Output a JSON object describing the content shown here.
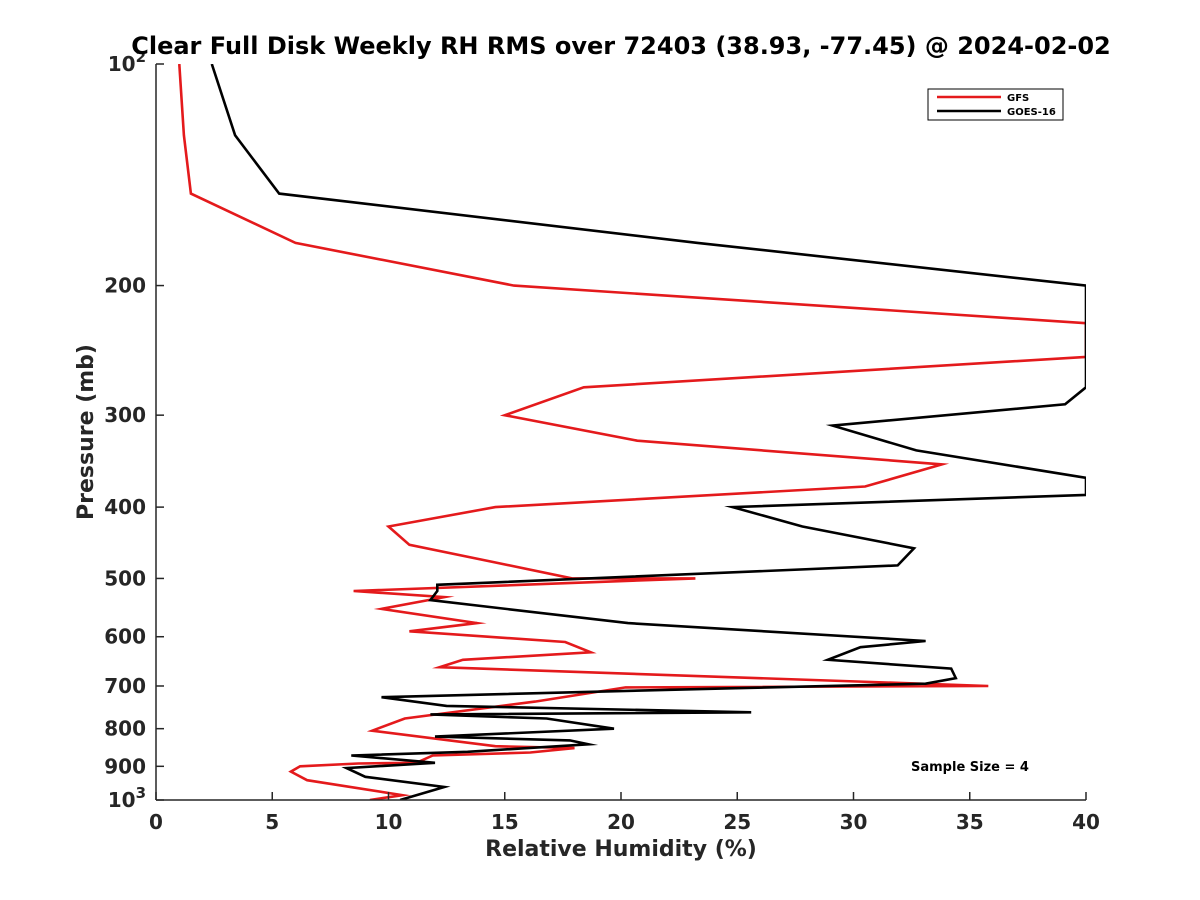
{
  "chart_data": {
    "type": "line",
    "title": "Clear Full Disk Weekly RH RMS over 72403 (38.93, -77.45) @ 2024-02-02",
    "xlabel": "Relative Humidity (%)",
    "ylabel": "Pressure (mb)",
    "xlim": [
      0,
      40
    ],
    "ylim": [
      100,
      1000
    ],
    "y_scale": "log",
    "y_reversed": true,
    "x_ticks": [
      "0",
      "5",
      "10",
      "15",
      "20",
      "25",
      "30",
      "35",
      "40"
    ],
    "y_ticks": [
      {
        "value": 100,
        "base": "10",
        "exp": "2"
      },
      {
        "value": 200,
        "label": "200"
      },
      {
        "value": 300,
        "label": "300"
      },
      {
        "value": 400,
        "label": "400"
      },
      {
        "value": 500,
        "label": "500"
      },
      {
        "value": 600,
        "label": "600"
      },
      {
        "value": 700,
        "label": "700"
      },
      {
        "value": 800,
        "label": "800"
      },
      {
        "value": 900,
        "label": "900"
      },
      {
        "value": 1000,
        "base": "10",
        "exp": "3"
      }
    ],
    "legend_position": "top-right",
    "annotation": "Sample Size = 4",
    "series": [
      {
        "name": "GFS",
        "color": "#e41a1c",
        "points": [
          [
            1.0,
            100
          ],
          [
            1.2,
            125
          ],
          [
            1.5,
            150
          ],
          [
            6.0,
            175
          ],
          [
            15.4,
            200
          ],
          [
            40.0,
            225
          ],
          [
            40.0,
            250
          ],
          [
            18.4,
            275
          ],
          [
            15.0,
            300
          ],
          [
            20.7,
            325
          ],
          [
            33.8,
            350
          ],
          [
            30.5,
            375
          ],
          [
            14.6,
            400
          ],
          [
            10.0,
            425
          ],
          [
            10.9,
            450
          ],
          [
            14.5,
            475
          ],
          [
            17.9,
            500
          ],
          [
            23.2,
            500
          ],
          [
            8.5,
            520
          ],
          [
            12.4,
            530
          ],
          [
            9.7,
            550
          ],
          [
            13.8,
            575
          ],
          [
            10.9,
            590
          ],
          [
            17.6,
            610
          ],
          [
            18.7,
            630
          ],
          [
            13.2,
            645
          ],
          [
            12.2,
            660
          ],
          [
            35.8,
            700
          ],
          [
            20.2,
            703
          ],
          [
            16.3,
            735
          ],
          [
            10.7,
            775
          ],
          [
            9.3,
            805
          ],
          [
            14.6,
            845
          ],
          [
            18.0,
            850
          ],
          [
            16.1,
            862
          ],
          [
            11.9,
            870
          ],
          [
            11.2,
            890
          ],
          [
            8.7,
            892
          ],
          [
            6.2,
            900
          ],
          [
            5.8,
            915
          ],
          [
            6.5,
            940
          ],
          [
            10.6,
            985
          ],
          [
            9.2,
            1000
          ]
        ]
      },
      {
        "name": "GOES-16",
        "color": "#000000",
        "points": [
          [
            2.4,
            100
          ],
          [
            3.4,
            125
          ],
          [
            5.3,
            150
          ],
          [
            23.3,
            175
          ],
          [
            40.0,
            200
          ],
          [
            40.0,
            275
          ],
          [
            39.1,
            290
          ],
          [
            29.1,
            310
          ],
          [
            32.7,
            335
          ],
          [
            40.0,
            365
          ],
          [
            40.0,
            385
          ],
          [
            24.8,
            400
          ],
          [
            27.8,
            425
          ],
          [
            32.6,
            455
          ],
          [
            31.9,
            480
          ],
          [
            12.1,
            510
          ],
          [
            12.1,
            520
          ],
          [
            11.8,
            535
          ],
          [
            20.3,
            575
          ],
          [
            33.1,
            608
          ],
          [
            30.3,
            620
          ],
          [
            28.9,
            645
          ],
          [
            34.2,
            663
          ],
          [
            34.4,
            683
          ],
          [
            33.1,
            695
          ],
          [
            24.7,
            705
          ],
          [
            9.7,
            725
          ],
          [
            12.5,
            745
          ],
          [
            25.6,
            760
          ],
          [
            11.8,
            765
          ],
          [
            16.8,
            775
          ],
          [
            19.7,
            800
          ],
          [
            12.0,
            820
          ],
          [
            17.8,
            830
          ],
          [
            18.6,
            840
          ],
          [
            13.4,
            860
          ],
          [
            8.4,
            870
          ],
          [
            12.0,
            890
          ],
          [
            8.2,
            905
          ],
          [
            9.0,
            930
          ],
          [
            12.4,
            960
          ],
          [
            10.5,
            1000
          ]
        ]
      }
    ]
  }
}
